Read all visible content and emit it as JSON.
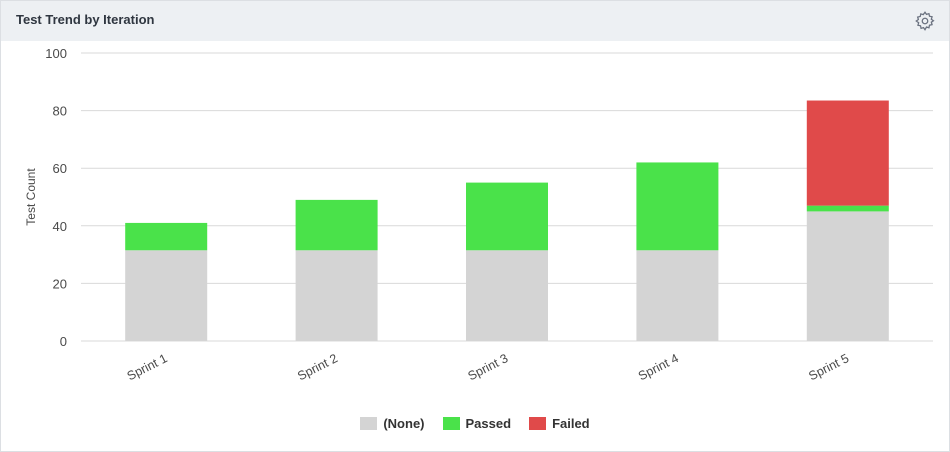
{
  "panel": {
    "title": "Test Trend by Iteration",
    "settings_icon": "gear-icon"
  },
  "colors": {
    "none": "#d4d4d4",
    "passed": "#4ae24a",
    "failed": "#e04a4a",
    "grid": "#d9d9d9",
    "axis_text": "#4a4a4a"
  },
  "chart_data": {
    "type": "bar",
    "stacked": true,
    "categories": [
      "Sprint 1",
      "Sprint 2",
      "Sprint 3",
      "Sprint 4",
      "Sprint 5"
    ],
    "series": [
      {
        "name": "(None)",
        "values": [
          31.5,
          31.5,
          31.5,
          31.5,
          45
        ],
        "color": "#d4d4d4"
      },
      {
        "name": "Passed",
        "values": [
          9.5,
          17.5,
          23.5,
          30.5,
          2
        ],
        "color": "#4ae24a"
      },
      {
        "name": "Failed",
        "values": [
          0,
          0,
          0,
          0,
          36.5
        ],
        "color": "#e04a4a"
      }
    ],
    "title": "",
    "xlabel": "",
    "ylabel": "Test Count",
    "ylim": [
      0,
      100
    ],
    "yticks": [
      0,
      20,
      40,
      60,
      80,
      100
    ],
    "grid": true,
    "legend_position": "bottom"
  }
}
